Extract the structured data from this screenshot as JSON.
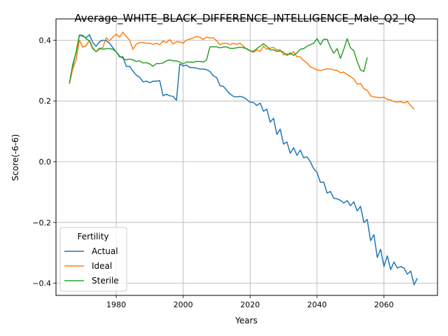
{
  "chart_data": {
    "type": "line",
    "title": "Average_WHITE_BLACK_DIFFERENCE_INTELLIGENCE_Male_Q2_IQ",
    "xlabel": "Years",
    "ylabel": "Score(-6-6)",
    "xlim": [
      1962,
      2076
    ],
    "ylim": [
      -0.44,
      0.47
    ],
    "x_ticks": [
      1980,
      2000,
      2020,
      2040,
      2060
    ],
    "y_ticks": [
      -0.4,
      -0.2,
      0.0,
      0.2,
      0.4
    ],
    "x_tick_labels": [
      "1980",
      "2000",
      "2020",
      "2040",
      "2060"
    ],
    "y_tick_labels": [
      "−0.4",
      "−0.2",
      "0.0",
      "0.2",
      "0.4"
    ],
    "grid": true,
    "legend": {
      "title": "Fertility",
      "placement": "lower-left"
    },
    "series": [
      {
        "name": "Actual",
        "color": "#1f77b4",
        "x_start": 1966,
        "values": [
          0.257,
          0.315,
          0.36,
          0.417,
          0.413,
          0.408,
          0.418,
          0.392,
          0.38,
          0.395,
          0.4,
          0.398,
          0.39,
          0.375,
          0.362,
          0.345,
          0.345,
          0.314,
          0.314,
          0.298,
          0.285,
          0.278,
          0.263,
          0.265,
          0.26,
          0.265,
          0.265,
          0.267,
          0.217,
          0.222,
          0.217,
          0.215,
          0.202,
          0.322,
          0.315,
          0.318,
          0.31,
          0.31,
          0.308,
          0.305,
          0.305,
          0.303,
          0.297,
          0.283,
          0.277,
          0.25,
          0.248,
          0.235,
          0.223,
          0.215,
          0.213,
          0.215,
          0.212,
          0.205,
          0.196,
          0.195,
          0.185,
          0.193,
          0.166,
          0.173,
          0.13,
          0.143,
          0.09,
          0.107,
          0.058,
          0.065,
          0.028,
          0.046,
          0.021,
          0.038,
          0.013,
          0.016,
          0.0,
          -0.023,
          -0.035,
          -0.068,
          -0.067,
          -0.103,
          -0.098,
          -0.12,
          -0.122,
          -0.127,
          -0.136,
          -0.128,
          -0.145,
          -0.132,
          -0.162,
          -0.147,
          -0.2,
          -0.19,
          -0.26,
          -0.24,
          -0.315,
          -0.288,
          -0.345,
          -0.31,
          -0.355,
          -0.33,
          -0.35,
          -0.345,
          -0.35,
          -0.37,
          -0.36,
          -0.405,
          -0.383
        ]
      },
      {
        "name": "Ideal",
        "color": "#ff7f0e",
        "x_start": 1966,
        "values": [
          0.257,
          0.305,
          0.335,
          0.4,
          0.377,
          0.382,
          0.4,
          0.375,
          0.362,
          0.37,
          0.376,
          0.408,
          0.398,
          0.41,
          0.42,
          0.41,
          0.426,
          0.412,
          0.4,
          0.37,
          0.387,
          0.392,
          0.392,
          0.39,
          0.39,
          0.386,
          0.39,
          0.385,
          0.397,
          0.392,
          0.402,
          0.387,
          0.395,
          0.394,
          0.39,
          0.4,
          0.403,
          0.408,
          0.412,
          0.41,
          0.403,
          0.41,
          0.407,
          0.408,
          0.398,
          0.385,
          0.39,
          0.39,
          0.385,
          0.39,
          0.386,
          0.39,
          0.38,
          0.37,
          0.365,
          0.36,
          0.368,
          0.363,
          0.38,
          0.37,
          0.374,
          0.376,
          0.368,
          0.368,
          0.352,
          0.355,
          0.353,
          0.362,
          0.345,
          0.345,
          0.333,
          0.325,
          0.312,
          0.308,
          0.302,
          0.3,
          0.303,
          0.305,
          0.305,
          0.302,
          0.3,
          0.293,
          0.295,
          0.287,
          0.28,
          0.272,
          0.255,
          0.258,
          0.24,
          0.235,
          0.217,
          0.213,
          0.212,
          0.21,
          0.213,
          0.205,
          0.203,
          0.198,
          0.196,
          0.198,
          0.193,
          0.198,
          0.185,
          0.172
        ]
      },
      {
        "name": "Sterile",
        "color": "#2ca02c",
        "x_start": 1966,
        "values": [
          0.257,
          0.32,
          0.36,
          0.417,
          0.416,
          0.405,
          0.397,
          0.372,
          0.362,
          0.374,
          0.37,
          0.372,
          0.372,
          0.37,
          0.362,
          0.348,
          0.34,
          0.335,
          0.338,
          0.335,
          0.33,
          0.332,
          0.325,
          0.326,
          0.322,
          0.314,
          0.323,
          0.323,
          0.325,
          0.332,
          0.335,
          0.332,
          0.332,
          0.328,
          0.322,
          0.328,
          0.328,
          0.327,
          0.33,
          0.33,
          0.328,
          0.335,
          0.378,
          0.378,
          0.378,
          0.375,
          0.377,
          0.378,
          0.373,
          0.373,
          0.375,
          0.377,
          0.375,
          0.372,
          0.365,
          0.363,
          0.372,
          0.38,
          0.388,
          0.38,
          0.368,
          0.368,
          0.363,
          0.365,
          0.36,
          0.35,
          0.358,
          0.35,
          0.358,
          0.37,
          0.372,
          0.38,
          0.385,
          0.39,
          0.405,
          0.385,
          0.403,
          0.403,
          0.377,
          0.357,
          0.372,
          0.34,
          0.37,
          0.405,
          0.375,
          0.365,
          0.33,
          0.302,
          0.297,
          0.343
        ]
      }
    ]
  }
}
